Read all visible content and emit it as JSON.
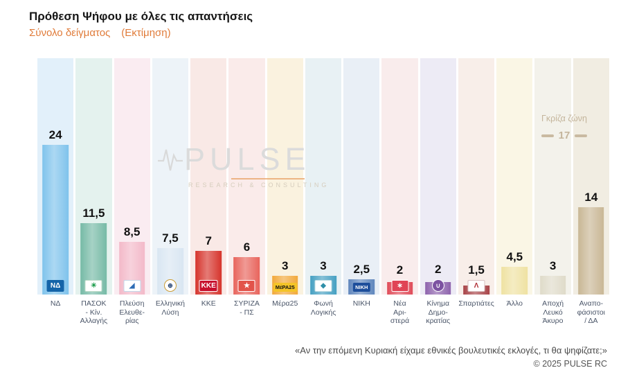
{
  "header": {
    "title": "Πρόθεση Ψήφου με όλες τις απαντήσεις",
    "subtitle_sample": "Σύνολο δείγματος",
    "subtitle_estimate": "(Εκτίμηση)"
  },
  "watermark": {
    "brand": "PULSE",
    "tagline": "RESEARCH & CONSULTING"
  },
  "grey_zone": {
    "label": "Γκρίζα ζώνη",
    "value": "17"
  },
  "footer": {
    "question": "«Αν την επόμενη Κυριακή είχαμε εθνικές βουλευτικές εκλογές, τι θα ψηφίζατε;»",
    "copyright": "© 2025 PULSE RC"
  },
  "colors": {
    "accent_orange": "#E07B39",
    "grey_zone_text": "#C4B59C",
    "title_text": "#161616",
    "category_text": "#4A5568"
  },
  "chart_data": {
    "type": "bar",
    "title": "Πρόθεση Ψήφου με όλες τις απαντήσεις",
    "subtitle": "Σύνολο δείγματος (Εκτίμηση)",
    "xlabel": "",
    "ylabel": "",
    "ylim": [
      0,
      26
    ],
    "grid": false,
    "legend": null,
    "categories": [
      "ΝΔ",
      "ΠΑΣΟΚ - Κίν. Αλλαγής",
      "Πλεύση Ελευθερίας",
      "Ελληνική Λύση",
      "ΚΚΕ",
      "ΣΥΡΙΖΑ - ΠΣ",
      "Μέρα25",
      "Φωνή Λογικής",
      "ΝΙΚΗ",
      "Νέα Αριστερά",
      "Κίνημα Δημοκρατίας",
      "Σπαρτιάτες",
      "Άλλο",
      "Αποχή Λευκό Άκυρο",
      "Αναποφάσιστοι / ΔΑ"
    ],
    "values": [
      24,
      11.5,
      8.5,
      7.5,
      7,
      6,
      3,
      3,
      2.5,
      2,
      2,
      1.5,
      4.5,
      3,
      14
    ],
    "annotation": {
      "label": "Γκρίζα ζώνη",
      "value": 17
    },
    "parties": [
      {
        "name": "ΝΔ",
        "display_name": "ΝΔ",
        "value": 24,
        "display_value": "24",
        "bar_color": "#7FC3EC",
        "band_color": "#E2F0FA",
        "logo": {
          "glyph": "ΝΔ",
          "bg": "#1464A8",
          "fg": "#FFFFFF",
          "shape": "rect",
          "border": ""
        }
      },
      {
        "name": "ΠΑΣΟΚ - Κίν. Αλλαγής",
        "display_name": "ΠΑΣΟΚ\n- Κίν.\nΑλλαγής",
        "value": 11.5,
        "display_value": "11,5",
        "bar_color": "#76BAA6",
        "band_color": "#E4F2EE",
        "logo": {
          "glyph": "☀",
          "bg": "#FFFFFF",
          "fg": "#1F9D4D",
          "shape": "rect",
          "border": "#BEDCC8"
        }
      },
      {
        "name": "Πλεύση Ελευθερίας",
        "display_name": "Πλεύση\nΕλευθε-\nρίας",
        "value": 8.5,
        "display_value": "8,5",
        "bar_color": "#F3B9C9",
        "band_color": "#FAECF1",
        "logo": {
          "glyph": "◢",
          "bg": "#FFFFFF",
          "fg": "#2D6CB5",
          "shape": "rect",
          "border": "#C3D6E8"
        }
      },
      {
        "name": "Ελληνική Λύση",
        "display_name": "Ελληνική\nΛύση",
        "value": 7.5,
        "display_value": "7,5",
        "bar_color": "#D9E6F2",
        "band_color": "#EDF3F8",
        "logo": {
          "glyph": "⊕",
          "bg": "#FFFFFF",
          "fg": "#1B3A6B",
          "shape": "circle",
          "border": "#C99A33"
        }
      },
      {
        "name": "ΚΚΕ",
        "display_name": "ΚΚΕ",
        "value": 7,
        "display_value": "7",
        "bar_color": "#D6342C",
        "band_color": "#F9E9E6",
        "logo": {
          "glyph": "ΚΚΕ",
          "bg": "#C8102E",
          "fg": "#FFFFFF",
          "shape": "rect",
          "border": "#FFFFFF"
        }
      },
      {
        "name": "ΣΥΡΙΖΑ - ΠΣ",
        "display_name": "ΣΥΡΙΖΑ\n- ΠΣ",
        "value": 6,
        "display_value": "6",
        "bar_color": "#E8645C",
        "band_color": "#FAEBEA",
        "logo": {
          "glyph": "★",
          "bg": "#E2534A",
          "fg": "#FFFFFF",
          "shape": "rect",
          "border": "#FFFFFF"
        }
      },
      {
        "name": "Μέρα25",
        "display_name": "Μέρα25",
        "value": 3,
        "display_value": "3",
        "bar_color": "#F2A93B",
        "band_color": "#FAF2DF",
        "logo": {
          "glyph": "ΜέΡΑ25",
          "bg": "#F4C428",
          "fg": "#111111",
          "shape": "wide",
          "border": ""
        }
      },
      {
        "name": "Φωνή Λογικής",
        "display_name": "Φωνή\nΛογικής",
        "value": 3,
        "display_value": "3",
        "bar_color": "#45A0C2",
        "band_color": "#E8F1F4",
        "logo": {
          "glyph": "◆",
          "bg": "#FFFFFF",
          "fg": "#2F8FA8",
          "shape": "rect",
          "border": "#BFDCE2"
        }
      },
      {
        "name": "ΝΙΚΗ",
        "display_name": "ΝΙΚΗ",
        "value": 2.5,
        "display_value": "2,5",
        "bar_color": "#5F86BD",
        "band_color": "#E9EFF6",
        "logo": {
          "glyph": "ΝΙΚΗ",
          "bg": "#1D4E9B",
          "fg": "#FFFFFF",
          "shape": "wide",
          "border": ""
        }
      },
      {
        "name": "Νέα Αριστερά",
        "display_name": "Νέα\nΑρι-\nστερά",
        "value": 2,
        "display_value": "2",
        "bar_color": "#E04B58",
        "band_color": "#F9ECEC",
        "logo": {
          "glyph": "∗",
          "bg": "#E04355",
          "fg": "#FFFFFF",
          "shape": "rect",
          "border": "#FFFFFF"
        }
      },
      {
        "name": "Κίνημα Δημοκρατίας",
        "display_name": "Κίνημα\nΔημο-\nκρατίας",
        "value": 2,
        "display_value": "2",
        "bar_color": "#8E63AD",
        "band_color": "#EDEBF5",
        "logo": {
          "glyph": "∪",
          "bg": "#7C52A1",
          "fg": "#FFFFFF",
          "shape": "circle",
          "border": "#FFFFFF"
        }
      },
      {
        "name": "Σπαρτιάτες",
        "display_name": "Σπαρτιάτες",
        "value": 1.5,
        "display_value": "1,5",
        "bar_color": "#A84448",
        "band_color": "#F8EEE9",
        "logo": {
          "glyph": "Λ",
          "bg": "#FFFFFF",
          "fg": "#B02E35",
          "shape": "rect",
          "border": "#D8C0C0"
        }
      },
      {
        "name": "Άλλο",
        "display_name": "Άλλο",
        "value": 4.5,
        "display_value": "4,5",
        "bar_color": "#EFE2A2",
        "band_color": "#FAF6E5",
        "logo": null
      },
      {
        "name": "Αποχή Λευκό Άκυρο",
        "display_name": "Αποχή\nΛευκό\nΆκυρο",
        "value": 3,
        "display_value": "3",
        "bar_color": "#DFDBC9",
        "band_color": "#F3F2EB",
        "logo": null
      },
      {
        "name": "Αναποφάσιστοι / ΔΑ",
        "display_name": "Αναπο-\nφάσιστοι\n/ ΔΑ",
        "value": 14,
        "display_value": "14",
        "bar_color": "#C9B795",
        "band_color": "#F1EDE2",
        "logo": null
      }
    ]
  }
}
